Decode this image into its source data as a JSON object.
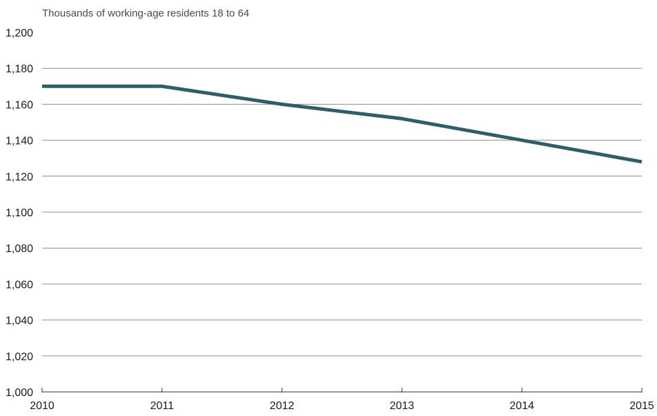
{
  "chart_data": {
    "type": "line",
    "title": "Thousands of working-age residents 18 to 64",
    "xlabel": "",
    "ylabel": "",
    "x": [
      2010,
      2011,
      2012,
      2013,
      2014,
      2015
    ],
    "x_tick_labels": [
      "2010",
      "2011",
      "2012",
      "2013",
      "2014",
      "2015"
    ],
    "y_tick_values": [
      1000,
      1020,
      1040,
      1060,
      1080,
      1100,
      1120,
      1140,
      1160,
      1180,
      1200
    ],
    "y_tick_labels": [
      "1,000",
      "1,020",
      "1,040",
      "1,060",
      "1,080",
      "1,100",
      "1,120",
      "1,140",
      "1,160",
      "1,180",
      "1,200"
    ],
    "ylim": [
      1000,
      1200
    ],
    "xlim": [
      2010,
      2015
    ],
    "grid": true,
    "series": [
      {
        "values": [
          1170,
          1170,
          1160,
          1152,
          1140,
          1128
        ],
        "color": "#2a5f6d"
      }
    ],
    "colors": {
      "line": "#2a5f6d",
      "grid": "#8c8c8c",
      "axis": "#333333",
      "text": "#1a1a1a"
    }
  }
}
